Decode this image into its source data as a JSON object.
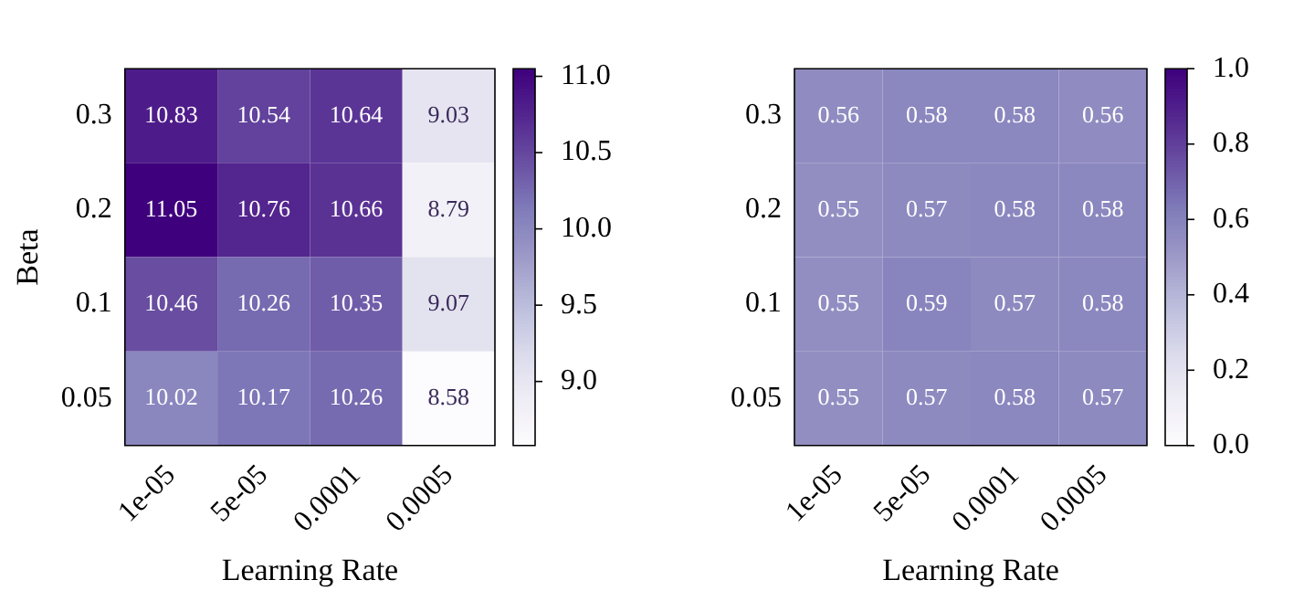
{
  "chart_data": [
    {
      "type": "heatmap",
      "xlabel": "Learning Rate",
      "ylabel": "Beta",
      "categories": [
        "1e-05",
        "5e-05",
        "0.0001",
        "0.0005"
      ],
      "y_categories": [
        "0.3",
        "0.2",
        "0.1",
        "0.05"
      ],
      "cells": [
        [
          10.83,
          10.54,
          10.64,
          9.03
        ],
        [
          11.05,
          10.76,
          10.66,
          8.79
        ],
        [
          10.46,
          10.26,
          10.35,
          9.07
        ],
        [
          10.02,
          10.17,
          10.26,
          8.58
        ]
      ],
      "data_labels": true,
      "clim": [
        8.58,
        11.05
      ],
      "cticks": [
        {
          "value": 9,
          "label": "9.0"
        },
        {
          "value": 9.5,
          "label": "9.5"
        },
        {
          "value": 10,
          "label": "10.0"
        },
        {
          "value": 10.5,
          "label": "10.5"
        },
        {
          "value": 11,
          "label": "11.0"
        }
      ]
    },
    {
      "type": "heatmap",
      "xlabel": "Learning Rate",
      "categories": [
        "1e-05",
        "5e-05",
        "0.0001",
        "0.0005"
      ],
      "y_categories": [
        "0.3",
        "0.2",
        "0.1",
        "0.05"
      ],
      "cells": [
        [
          0.56,
          0.58,
          0.58,
          0.56
        ],
        [
          0.55,
          0.57,
          0.58,
          0.58
        ],
        [
          0.55,
          0.59,
          0.57,
          0.58
        ],
        [
          0.55,
          0.57,
          0.58,
          0.57
        ]
      ],
      "data_labels": true,
      "clim": [
        0,
        1
      ],
      "cticks": [
        {
          "value": 0,
          "label": "0.0"
        },
        {
          "value": 0.2,
          "label": "0.2"
        },
        {
          "value": 0.4,
          "label": "0.4"
        },
        {
          "value": 0.6,
          "label": "0.6"
        },
        {
          "value": 0.8,
          "label": "0.8"
        },
        {
          "value": 1,
          "label": "1.0"
        }
      ]
    }
  ]
}
